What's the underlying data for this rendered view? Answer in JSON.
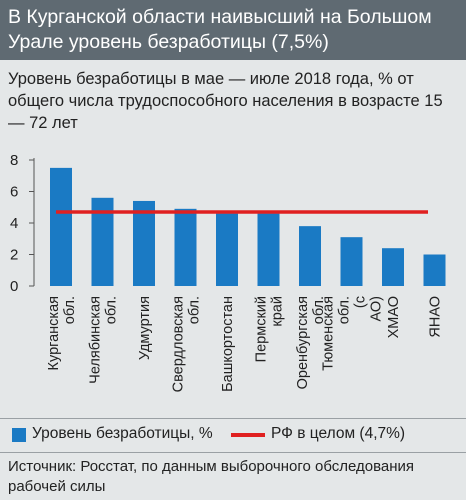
{
  "title": "В Курганской области наивысший на Большом Урале уровень безработицы (7,5%)",
  "source": "Источник: Росстат, по данным выборочного обследования рабочей силы",
  "colors": {
    "header": "#5f6a72",
    "background": "#e4e7e8",
    "bar": "#1a7ac4",
    "reference_line": "#e02020"
  },
  "chart_data": {
    "type": "bar",
    "title": "Уровень безработицы в мае — июле 2018 года, % от общего числа трудоспособного населения в возрасте 15 — 72 лет",
    "categories": [
      "Курганская обл.",
      "Челябинская обл.",
      "Удмуртия",
      "Свердловская обл.",
      "Башкортостан",
      "Пермский край",
      "Оренбургская обл.",
      "Тюменская обл. (с АО)",
      "ХМАО",
      "ЯНАО"
    ],
    "series": [
      {
        "name": "Уровень безработицы, %",
        "values": [
          7.5,
          5.6,
          5.4,
          4.9,
          4.6,
          4.6,
          3.8,
          3.1,
          2.4,
          2.0
        ]
      }
    ],
    "reference_line": {
      "name": "РФ в целом (4,7%)",
      "value": 4.7
    },
    "yticks": [
      "0",
      "2",
      "4",
      "6",
      "8"
    ],
    "ylim": [
      0,
      8
    ],
    "grid": false,
    "legend_position": "bottom"
  }
}
